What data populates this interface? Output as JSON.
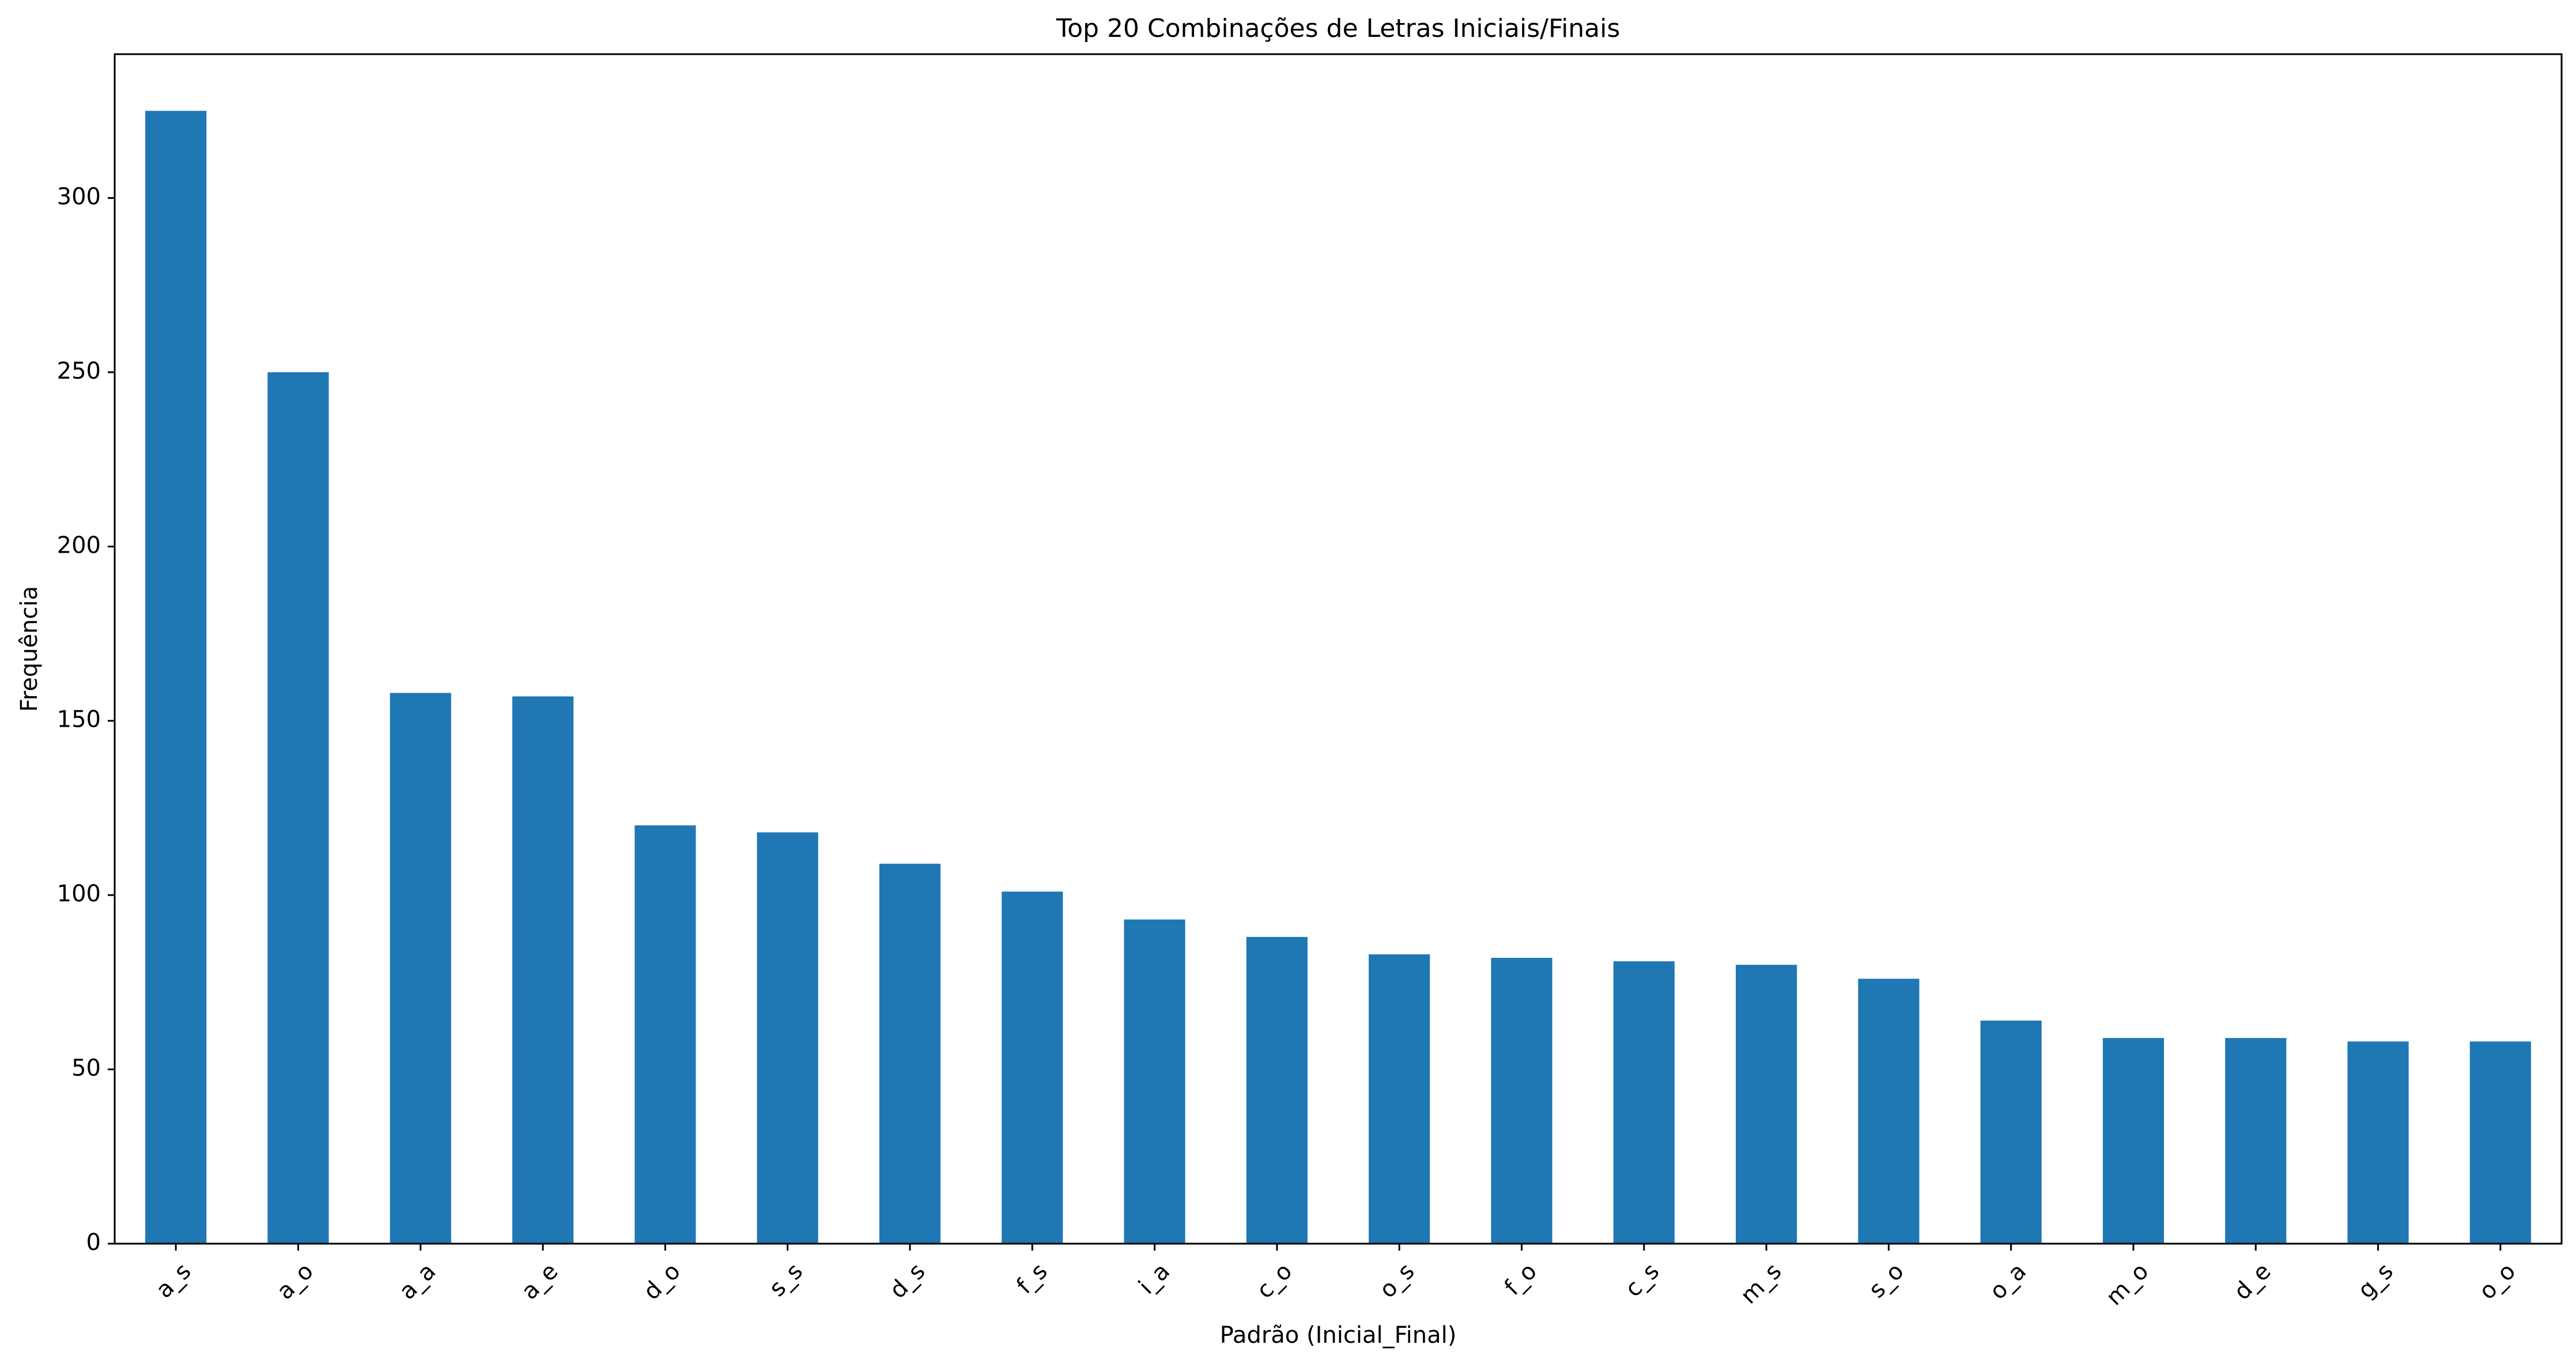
{
  "chart_data": {
    "type": "bar",
    "title": "Top 20 Combinações de Letras Iniciais/Finais",
    "xlabel": "Padrão (Inicial_Final)",
    "ylabel": "Frequência",
    "categories": [
      "a_s",
      "a_o",
      "a_a",
      "a_e",
      "d_o",
      "s_s",
      "d_s",
      "f_s",
      "i_a",
      "c_o",
      "o_s",
      "f_o",
      "c_s",
      "m_s",
      "s_o",
      "o_a",
      "m_o",
      "d_e",
      "g_s",
      "o_o"
    ],
    "values": [
      325,
      250,
      158,
      157,
      120,
      118,
      109,
      101,
      93,
      88,
      83,
      82,
      81,
      80,
      76,
      64,
      59,
      59,
      58,
      58
    ],
    "ylim": [
      0,
      341.25
    ],
    "yticks": [
      0,
      50,
      100,
      150,
      200,
      250,
      300
    ],
    "bar_color": "#1f77b4",
    "grid": false,
    "legend": "none"
  }
}
